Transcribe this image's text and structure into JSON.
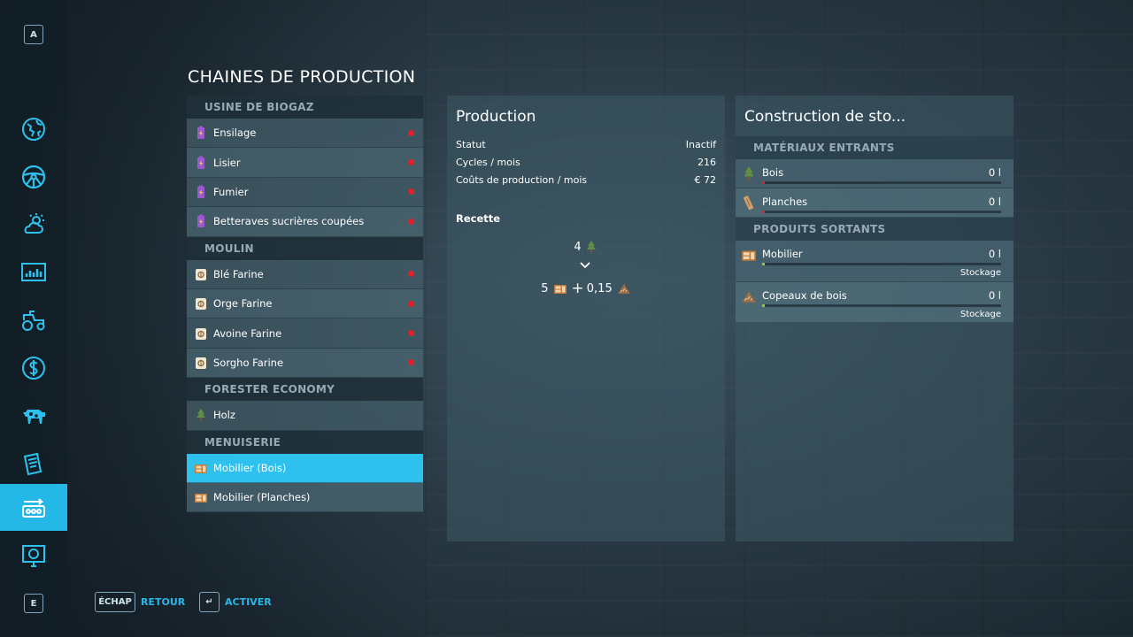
{
  "sidebar": {
    "top_key": "A",
    "bottom_key": "E",
    "items": [
      {
        "icon": "map-globe-icon"
      },
      {
        "icon": "steering-wheel-icon"
      },
      {
        "icon": "weather-icon"
      },
      {
        "icon": "statistics-icon"
      },
      {
        "icon": "tractor-icon"
      },
      {
        "icon": "finances-icon"
      },
      {
        "icon": "animals-icon"
      },
      {
        "icon": "contracts-icon"
      },
      {
        "icon": "production-chains-icon",
        "active": true
      },
      {
        "icon": "help-icon"
      }
    ]
  },
  "page_title": "CHAINES DE PRODUCTION",
  "chains": {
    "groups": [
      {
        "name": "USINE DE BIOGAZ",
        "items": [
          "Ensilage",
          "Lisier",
          "Fumier",
          "Betteraves sucrières coupées"
        ]
      },
      {
        "name": "MOULIN",
        "items": [
          "Blé Farine",
          "Orge Farine",
          "Avoine Farine",
          "Sorgho Farine"
        ]
      },
      {
        "name": "FORESTER ECONOMY",
        "items": [
          "Holz"
        ]
      },
      {
        "name": "MENUISERIE",
        "items": [
          "Mobilier (Bois)",
          "Mobilier (Planches)"
        ]
      }
    ]
  },
  "production": {
    "title": "Production",
    "stats": [
      {
        "label": "Statut",
        "value": "Inactif"
      },
      {
        "label": "Cycles / mois",
        "value": "216"
      },
      {
        "label": "Coûts de production / mois",
        "value": "€ 72"
      }
    ],
    "recipe_label": "Recette",
    "recipe_input": "4",
    "recipe_output_a": "5",
    "recipe_plus": "+",
    "recipe_output_b": "0,15"
  },
  "storage": {
    "title": "Construction de sto...",
    "inputs_header": "MATÉRIAUX ENTRANTS",
    "inputs": [
      {
        "name": "Bois",
        "amount": "0 l"
      },
      {
        "name": "Planches",
        "amount": "0 l"
      }
    ],
    "outputs_header": "PRODUITS SORTANTS",
    "outputs": [
      {
        "name": "Mobilier",
        "amount": "0 l",
        "mode": "Stockage"
      },
      {
        "name": "Copeaux de bois",
        "amount": "0 l",
        "mode": "Stockage"
      }
    ]
  },
  "footer": {
    "back_key": "ÉCHAP",
    "back_label": "RETOUR",
    "activate_key": "↵",
    "activate_label": "ACTIVER"
  },
  "colors": {
    "accent": "#2ec1ee",
    "status_inactive": "#e2202a",
    "input_bar": "#e2202a",
    "output_bar": "#7fd13b"
  }
}
